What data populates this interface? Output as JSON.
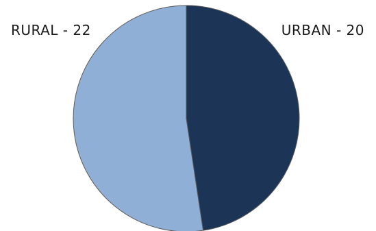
{
  "chart_data": {
    "type": "pie",
    "title": "",
    "slices": [
      {
        "label": "URBAN - 20",
        "category": "URBAN",
        "value": 20,
        "color": "#1c3557"
      },
      {
        "label": "RURAL - 22",
        "category": "RURAL",
        "value": 22,
        "color": "#8fafd6"
      }
    ],
    "start": "12 o'clock",
    "direction": "clockwise",
    "legend": "none",
    "labels_outside": true
  }
}
